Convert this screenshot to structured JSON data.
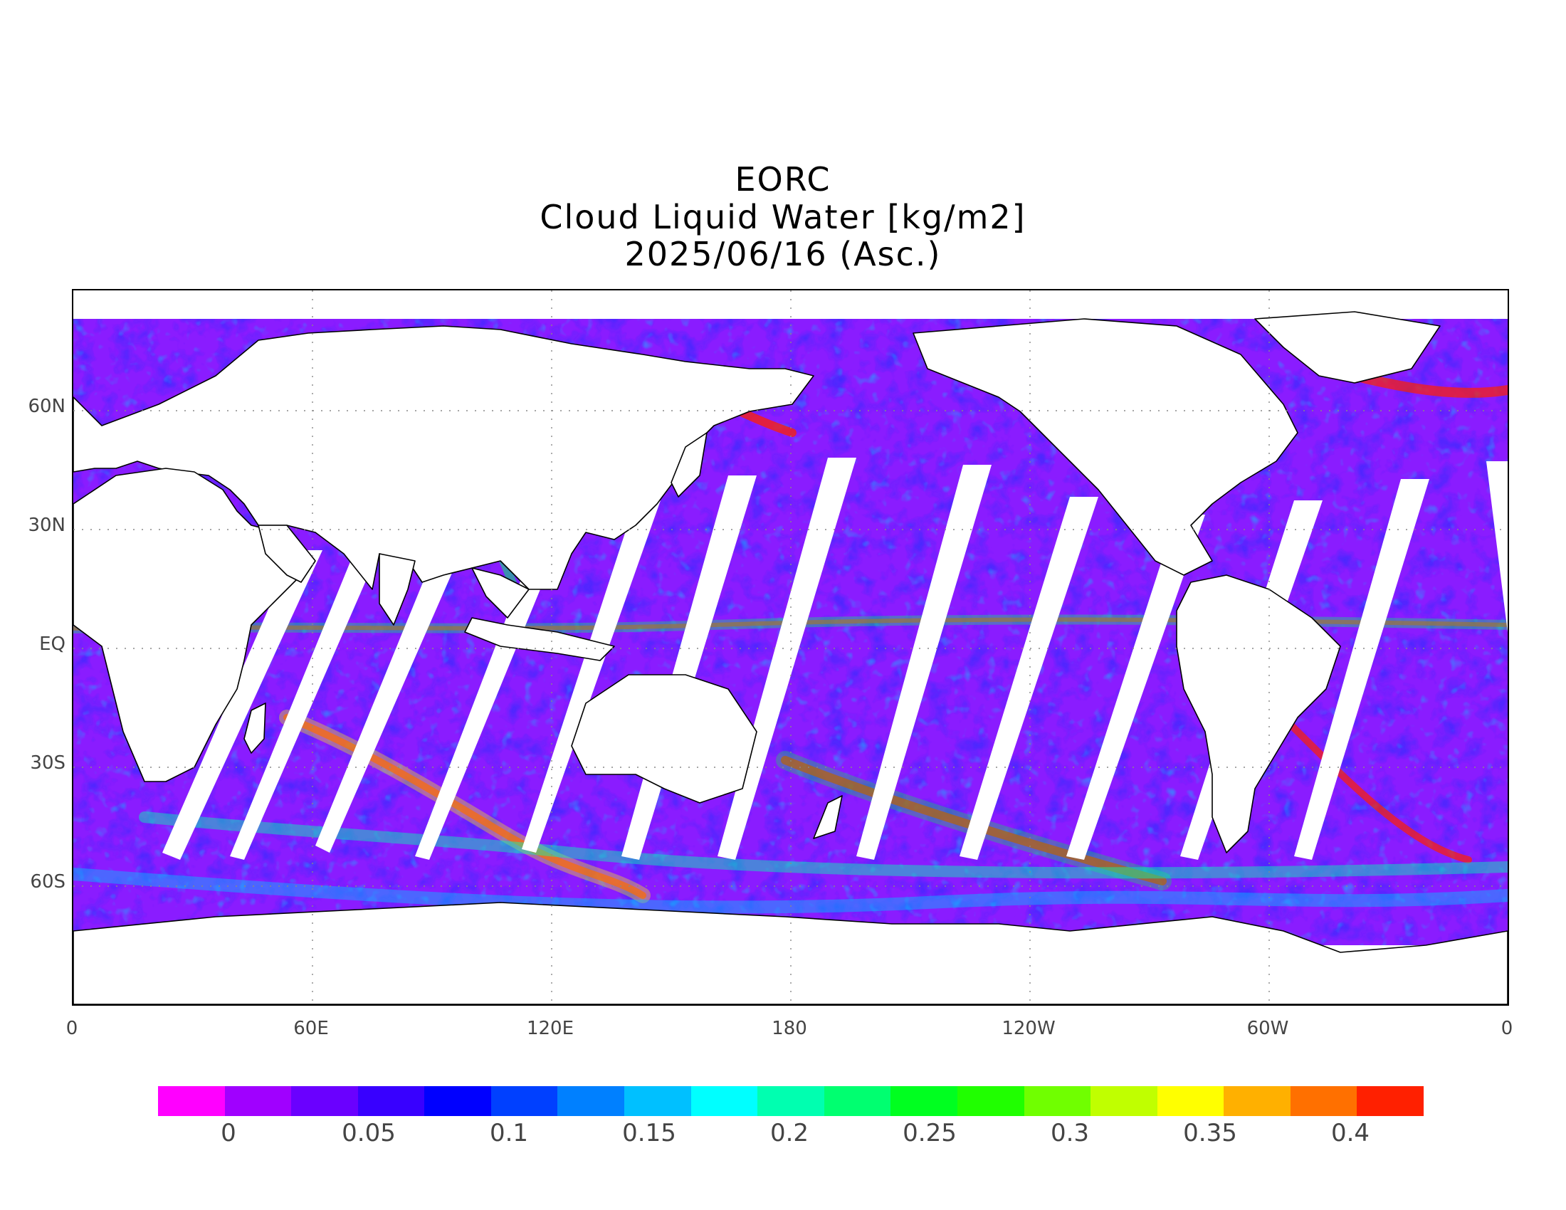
{
  "title": {
    "line1": "EORC",
    "line2": "Cloud Liquid Water [kg/m2]",
    "line3": "2025/06/16 (Asc.)"
  },
  "map": {
    "projection": "equirectangular",
    "lon_range": [
      0,
      360
    ],
    "lat_range": [
      -90,
      90
    ],
    "latitude_labels": [
      "60N",
      "30N",
      "EQ",
      "30S",
      "60S"
    ],
    "longitude_labels": [
      "0",
      "60E",
      "120E",
      "180",
      "120W",
      "60W",
      "0"
    ],
    "grid": true,
    "missing_data_color": "#ffffff",
    "coastline_color": "#000000"
  },
  "colorbar": {
    "colors": [
      "#ff00ff",
      "#a000ff",
      "#6a00ff",
      "#3800ff",
      "#0000ff",
      "#0040ff",
      "#0080ff",
      "#00c0ff",
      "#00ffff",
      "#00ffb0",
      "#00ff70",
      "#00ff20",
      "#20ff00",
      "#70ff00",
      "#c0ff00",
      "#ffff00",
      "#ffb000",
      "#ff7000",
      "#ff2000"
    ],
    "tick_labels": [
      "0",
      "0.05",
      "0.1",
      "0.15",
      "0.2",
      "0.25",
      "0.3",
      "0.35",
      "0.4"
    ]
  }
}
